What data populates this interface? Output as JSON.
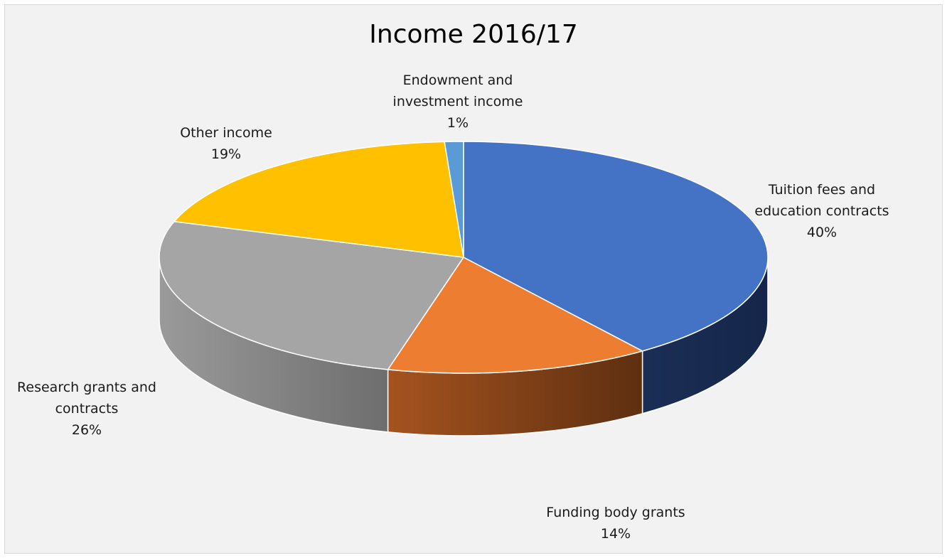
{
  "chart_data": {
    "type": "pie",
    "title": "Income 2016/17",
    "slices": [
      {
        "label_lines": [
          "Tuition fees and",
          "education contracts"
        ],
        "value": 40,
        "value_label": "40%",
        "color": "#4472c4",
        "side_color": "#1b2e55"
      },
      {
        "label_lines": [
          "Funding body grants"
        ],
        "value": 14,
        "value_label": "14%",
        "color": "#ed7d31",
        "side_color": "#8a4519"
      },
      {
        "label_lines": [
          "Research grants and",
          "contracts"
        ],
        "value": 26,
        "value_label": "26%",
        "color": "#a5a5a5",
        "side_color": "#777777"
      },
      {
        "label_lines": [
          "Other income"
        ],
        "value": 19,
        "value_label": "19%",
        "color": "#ffc000",
        "side_color": "#8c6a00"
      },
      {
        "label_lines": [
          "Endowment and",
          "investment income"
        ],
        "value": 1,
        "value_label": "1%",
        "color": "#5b9bd5",
        "side_color": "#2e5a86"
      }
    ]
  }
}
